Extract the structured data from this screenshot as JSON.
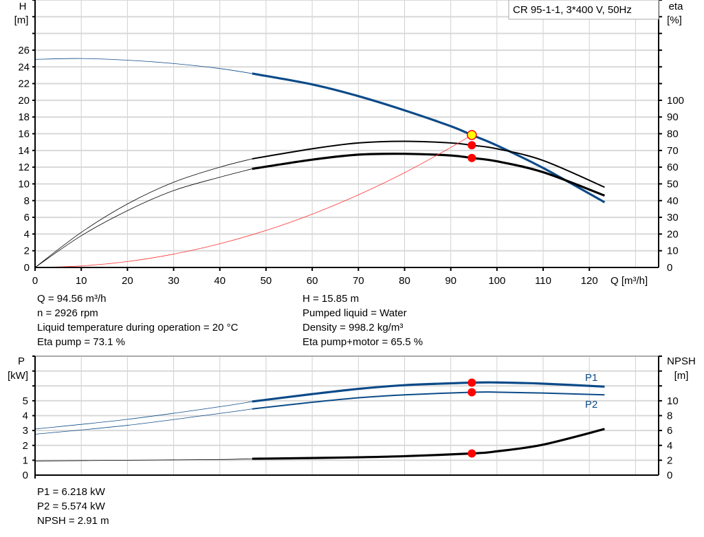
{
  "chart_data": [
    {
      "type": "line",
      "title": "CR 95-1-1, 3*400 V, 50Hz",
      "xlabel": "Q [m³/h]",
      "ylabel": "H",
      "ylabel_unit": "[m]",
      "y2label": "eta",
      "y2label_unit": "[%]",
      "xlim": [
        0,
        135
      ],
      "ylim": [
        0,
        32
      ],
      "y2lim": [
        0,
        160
      ],
      "xticks": [
        0,
        10,
        20,
        30,
        40,
        50,
        60,
        70,
        80,
        90,
        100,
        110,
        120
      ],
      "yticks": [
        0,
        2,
        4,
        6,
        8,
        10,
        12,
        14,
        16,
        18,
        20,
        22,
        24,
        26
      ],
      "y2ticks": [
        0,
        10,
        20,
        30,
        40,
        50,
        60,
        70,
        80,
        90,
        100
      ],
      "grid": true,
      "series": [
        {
          "key": "H",
          "axis": "left",
          "color": "#0b4a88",
          "thick_from": 47,
          "points": [
            [
              0,
              24.9
            ],
            [
              10,
              25.0
            ],
            [
              20,
              24.8
            ],
            [
              30,
              24.4
            ],
            [
              40,
              23.8
            ],
            [
              47,
              23.2
            ],
            [
              60,
              21.9
            ],
            [
              70,
              20.5
            ],
            [
              80,
              18.8
            ],
            [
              90,
              16.9
            ],
            [
              94.56,
              15.85
            ],
            [
              100,
              14.6
            ],
            [
              110,
              11.9
            ],
            [
              123.3,
              7.8
            ]
          ]
        },
        {
          "key": "eta_pump",
          "axis": "right",
          "color": "#000000",
          "thick_from": 47,
          "thin": true,
          "points": [
            [
              0,
              0
            ],
            [
              10,
              21
            ],
            [
              20,
              38
            ],
            [
              30,
              51
            ],
            [
              40,
              60
            ],
            [
              47,
              65
            ],
            [
              60,
              71
            ],
            [
              70,
              74.5
            ],
            [
              80,
              75.5
            ],
            [
              90,
              74.5
            ],
            [
              94.56,
              73.1
            ],
            [
              100,
              71
            ],
            [
              110,
              64
            ],
            [
              123.3,
              48
            ]
          ]
        },
        {
          "key": "eta_pump_motor",
          "axis": "right",
          "color": "#000000",
          "thick_from": 47,
          "points": [
            [
              0,
              0
            ],
            [
              10,
              19
            ],
            [
              20,
              34
            ],
            [
              30,
              46
            ],
            [
              40,
              54
            ],
            [
              47,
              59
            ],
            [
              60,
              64.5
            ],
            [
              70,
              67.5
            ],
            [
              80,
              68
            ],
            [
              90,
              67
            ],
            [
              94.56,
              65.5
            ],
            [
              100,
              63.5
            ],
            [
              110,
              57
            ],
            [
              123.3,
              43
            ]
          ]
        },
        {
          "key": "system",
          "axis": "left",
          "color": "#ff3030",
          "points": [
            [
              0,
              0
            ],
            [
              10,
              0.18
            ],
            [
              20,
              0.71
            ],
            [
              30,
              1.6
            ],
            [
              40,
              2.84
            ],
            [
              50,
              4.43
            ],
            [
              60,
              6.38
            ],
            [
              70,
              8.69
            ],
            [
              80,
              11.34
            ],
            [
              90,
              14.36
            ],
            [
              94.56,
              15.85
            ]
          ]
        }
      ],
      "operating_point": {
        "Q": 94.56,
        "H": 15.85,
        "eta_pump": 73.1,
        "eta_pump_motor": 65.5,
        "color": "#ffff00"
      }
    },
    {
      "type": "line",
      "ylabel": "P",
      "ylabel_unit": "[kW]",
      "y2label": "NPSH",
      "y2label_unit": "[m]",
      "xlim": [
        0,
        135
      ],
      "ylim": [
        0,
        8
      ],
      "y2lim": [
        0,
        16
      ],
      "yticks": [
        0,
        1,
        2,
        3,
        4,
        5
      ],
      "y2ticks": [
        0,
        2,
        4,
        6,
        8,
        10
      ],
      "grid": true,
      "series": [
        {
          "key": "P1",
          "name": "P1",
          "axis": "left",
          "color": "#0b4a88",
          "thick_from": 47,
          "points": [
            [
              0,
              3.1
            ],
            [
              20,
              3.75
            ],
            [
              40,
              4.6
            ],
            [
              47,
              4.95
            ],
            [
              60,
              5.45
            ],
            [
              70,
              5.8
            ],
            [
              80,
              6.05
            ],
            [
              94.56,
              6.218
            ],
            [
              100,
              6.23
            ],
            [
              110,
              6.15
            ],
            [
              123.3,
              5.95
            ]
          ]
        },
        {
          "key": "P2",
          "name": "P2",
          "axis": "left",
          "color": "#0b4a88",
          "thick_from": 47,
          "thin": true,
          "points": [
            [
              0,
              2.75
            ],
            [
              20,
              3.35
            ],
            [
              40,
              4.15
            ],
            [
              47,
              4.45
            ],
            [
              60,
              4.9
            ],
            [
              70,
              5.2
            ],
            [
              80,
              5.4
            ],
            [
              94.56,
              5.574
            ],
            [
              100,
              5.58
            ],
            [
              110,
              5.52
            ],
            [
              123.3,
              5.4
            ]
          ]
        },
        {
          "key": "NPSH",
          "axis": "right",
          "color": "#000000",
          "thick_from": 47,
          "points": [
            [
              0,
              1.9
            ],
            [
              20,
              2.0
            ],
            [
              40,
              2.1
            ],
            [
              47,
              2.2
            ],
            [
              60,
              2.3
            ],
            [
              70,
              2.4
            ],
            [
              80,
              2.55
            ],
            [
              94.56,
              2.91
            ],
            [
              100,
              3.2
            ],
            [
              110,
              4.1
            ],
            [
              123.3,
              6.2
            ]
          ]
        }
      ],
      "operating_point": {
        "Q": 94.56,
        "P1": 6.218,
        "P2": 5.574,
        "NPSH": 2.91
      }
    }
  ],
  "info_left": [
    "Q = 94.56 m³/h",
    "n = 2926 rpm",
    "Liquid temperature during operation = 20 °C",
    "Eta pump = 73.1 %"
  ],
  "info_right": [
    "H = 15.85 m",
    "Pumped liquid = Water",
    "Density = 998.2 kg/m³",
    "Eta pump+motor = 65.5 %"
  ],
  "info_bottom": [
    "P1 = 6.218 kW",
    "P2 = 5.574 kW",
    "NPSH = 2.91 m"
  ]
}
